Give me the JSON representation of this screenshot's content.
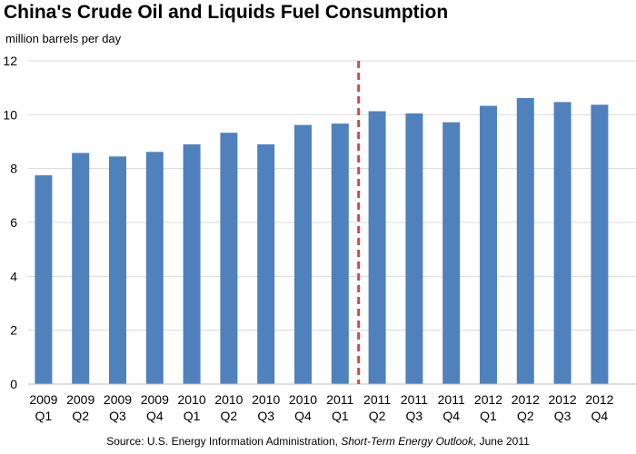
{
  "title": "China's Crude Oil and Liquids Fuel Consumption",
  "unit_label": "million barrels per day",
  "source": {
    "prefix": "Source: U.S. Energy Information Administration, ",
    "italic": "Short-Term Energy Outlook",
    "suffix": ", June 2011"
  },
  "chart_data": {
    "type": "bar",
    "categories": [
      [
        "2009",
        "Q1"
      ],
      [
        "2009",
        "Q2"
      ],
      [
        "2009",
        "Q3"
      ],
      [
        "2009",
        "Q4"
      ],
      [
        "2010",
        "Q1"
      ],
      [
        "2010",
        "Q2"
      ],
      [
        "2010",
        "Q3"
      ],
      [
        "2010",
        "Q4"
      ],
      [
        "2011",
        "Q1"
      ],
      [
        "2011",
        "Q2"
      ],
      [
        "2011",
        "Q3"
      ],
      [
        "2011",
        "Q4"
      ],
      [
        "2012",
        "Q1"
      ],
      [
        "2012",
        "Q2"
      ],
      [
        "2012",
        "Q3"
      ],
      [
        "2012",
        "Q4"
      ]
    ],
    "values": [
      7.75,
      8.58,
      8.45,
      8.62,
      8.9,
      9.33,
      8.9,
      9.62,
      9.67,
      10.13,
      10.05,
      9.72,
      10.33,
      10.62,
      10.47,
      10.37
    ],
    "ylim": [
      0,
      12
    ],
    "yticks": [
      0,
      2,
      4,
      6,
      8,
      10,
      12
    ],
    "grid": true,
    "forecast_divider_after_index": 8,
    "colors": {
      "bar": "#4f81bd",
      "divider": "#c0504d",
      "grid": "#d9d9d9"
    }
  }
}
